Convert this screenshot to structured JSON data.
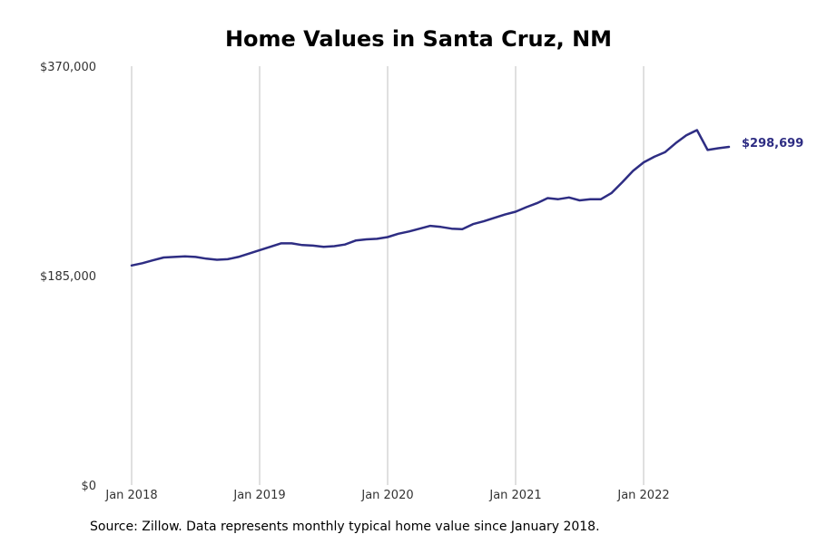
{
  "chart_data": {
    "type": "line",
    "title": "Home Values in Santa Cruz, NM",
    "xlabel": "",
    "ylabel": "",
    "ylim": [
      0,
      370000
    ],
    "y_ticks": [
      {
        "value": 0,
        "label": "$0"
      },
      {
        "value": 185000,
        "label": "$185,000"
      },
      {
        "value": 370000,
        "label": "$370,000"
      }
    ],
    "x_ticks": [
      {
        "value": 0,
        "label": "Jan 2018"
      },
      {
        "value": 12,
        "label": "Jan 2019"
      },
      {
        "value": 24,
        "label": "Jan 2020"
      },
      {
        "value": 36,
        "label": "Jan 2021"
      },
      {
        "value": 48,
        "label": "Jan 2022"
      }
    ],
    "grid": "vertical",
    "line_color": "#2e2d83",
    "series": [
      {
        "x_start": "Jan 2018",
        "frequency": "monthly",
        "values": [
          194000,
          196000,
          198500,
          201000,
          201500,
          202000,
          201500,
          200000,
          199000,
          199500,
          201500,
          204500,
          207500,
          210500,
          213500,
          213500,
          212000,
          211500,
          210500,
          211000,
          212500,
          216000,
          217000,
          217500,
          219000,
          222000,
          224000,
          226500,
          229000,
          228000,
          226500,
          226000,
          230500,
          233000,
          236000,
          239000,
          241500,
          245500,
          249000,
          253500,
          252500,
          254000,
          251500,
          252500,
          252500,
          258000,
          267500,
          277500,
          285000,
          290000,
          294000,
          302000,
          309000,
          313500,
          296000,
          297500,
          298699
        ]
      }
    ],
    "end_label": "$298,699"
  },
  "source": "Source: Zillow. Data represents monthly typical home value since January 2018."
}
